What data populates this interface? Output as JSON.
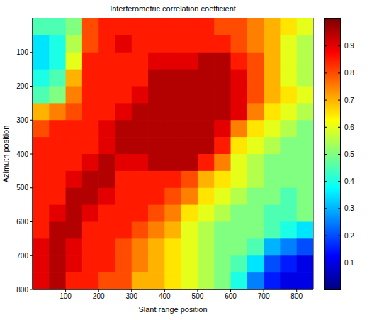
{
  "chart_data": {
    "type": "heatmap",
    "title": "Interferometric correlation coefficient",
    "x_label": "Slant range position",
    "y_label": "Azimuth position",
    "x": [
      25,
      75,
      125,
      175,
      225,
      275,
      325,
      375,
      425,
      475,
      525,
      575,
      625,
      675,
      725,
      775,
      825
    ],
    "y": [
      25,
      75,
      125,
      175,
      225,
      275,
      325,
      375,
      425,
      475,
      525,
      575,
      625,
      675,
      725,
      775
    ],
    "values": [
      [
        0.45,
        0.45,
        0.5,
        0.8,
        0.85,
        0.85,
        0.85,
        0.85,
        0.85,
        0.85,
        0.85,
        0.8,
        0.8,
        0.75,
        0.7,
        0.65,
        0.6
      ],
      [
        0.35,
        0.4,
        0.55,
        0.8,
        0.85,
        0.9,
        0.85,
        0.85,
        0.85,
        0.85,
        0.85,
        0.85,
        0.8,
        0.75,
        0.7,
        0.6,
        0.55
      ],
      [
        0.35,
        0.4,
        0.6,
        0.85,
        0.85,
        0.85,
        0.85,
        0.9,
        0.9,
        0.9,
        0.95,
        0.95,
        0.85,
        0.8,
        0.7,
        0.6,
        0.55
      ],
      [
        0.4,
        0.45,
        0.7,
        0.85,
        0.85,
        0.85,
        0.85,
        0.95,
        0.95,
        0.95,
        0.95,
        0.95,
        0.9,
        0.8,
        0.7,
        0.6,
        0.55
      ],
      [
        0.45,
        0.5,
        0.75,
        0.85,
        0.85,
        0.85,
        0.9,
        0.95,
        0.95,
        0.95,
        0.95,
        0.95,
        0.9,
        0.8,
        0.7,
        0.65,
        0.6
      ],
      [
        0.7,
        0.75,
        0.8,
        0.85,
        0.85,
        0.9,
        0.95,
        0.95,
        0.95,
        0.95,
        0.95,
        0.95,
        0.9,
        0.75,
        0.65,
        0.6,
        0.55
      ],
      [
        0.8,
        0.85,
        0.85,
        0.85,
        0.9,
        0.95,
        0.95,
        0.95,
        0.95,
        0.95,
        0.95,
        0.9,
        0.75,
        0.65,
        0.6,
        0.55,
        0.5
      ],
      [
        0.85,
        0.85,
        0.85,
        0.85,
        0.9,
        0.95,
        0.95,
        0.95,
        0.95,
        0.95,
        0.95,
        0.85,
        0.65,
        0.6,
        0.55,
        0.5,
        0.5
      ],
      [
        0.85,
        0.85,
        0.85,
        0.9,
        0.95,
        0.9,
        0.9,
        0.95,
        0.95,
        0.95,
        0.85,
        0.75,
        0.6,
        0.55,
        0.5,
        0.5,
        0.5
      ],
      [
        0.85,
        0.85,
        0.9,
        0.95,
        0.95,
        0.85,
        0.85,
        0.85,
        0.85,
        0.8,
        0.7,
        0.65,
        0.6,
        0.55,
        0.5,
        0.5,
        0.5
      ],
      [
        0.85,
        0.85,
        0.95,
        0.95,
        0.9,
        0.85,
        0.85,
        0.85,
        0.8,
        0.75,
        0.65,
        0.6,
        0.55,
        0.5,
        0.5,
        0.45,
        0.5
      ],
      [
        0.85,
        0.9,
        0.95,
        0.9,
        0.85,
        0.85,
        0.85,
        0.8,
        0.75,
        0.65,
        0.6,
        0.55,
        0.5,
        0.5,
        0.45,
        0.45,
        0.5
      ],
      [
        0.85,
        0.95,
        0.95,
        0.85,
        0.85,
        0.85,
        0.8,
        0.75,
        0.7,
        0.6,
        0.55,
        0.5,
        0.5,
        0.5,
        0.45,
        0.4,
        0.35
      ],
      [
        0.9,
        0.95,
        0.9,
        0.85,
        0.85,
        0.8,
        0.75,
        0.7,
        0.65,
        0.6,
        0.55,
        0.5,
        0.5,
        0.45,
        0.3,
        0.25,
        0.2
      ],
      [
        0.9,
        0.95,
        0.9,
        0.85,
        0.85,
        0.8,
        0.75,
        0.7,
        0.65,
        0.6,
        0.55,
        0.5,
        0.45,
        0.35,
        0.2,
        0.15,
        0.1
      ],
      [
        0.9,
        0.95,
        0.85,
        0.85,
        0.8,
        0.8,
        0.7,
        0.7,
        0.65,
        0.6,
        0.55,
        0.5,
        0.4,
        0.25,
        0.15,
        0.1,
        0.1
      ]
    ],
    "xlim": [
      0,
      850
    ],
    "ylim": [
      0,
      800
    ],
    "xticks": [
      100,
      200,
      300,
      400,
      500,
      600,
      700,
      800
    ],
    "yticks": [
      100,
      200,
      300,
      400,
      500,
      600,
      700,
      800
    ],
    "colorbar_range": [
      0,
      1
    ],
    "colorbar_ticks": [
      0.1,
      0.2,
      0.3,
      0.4,
      0.5,
      0.6,
      0.7,
      0.8,
      0.9
    ]
  }
}
